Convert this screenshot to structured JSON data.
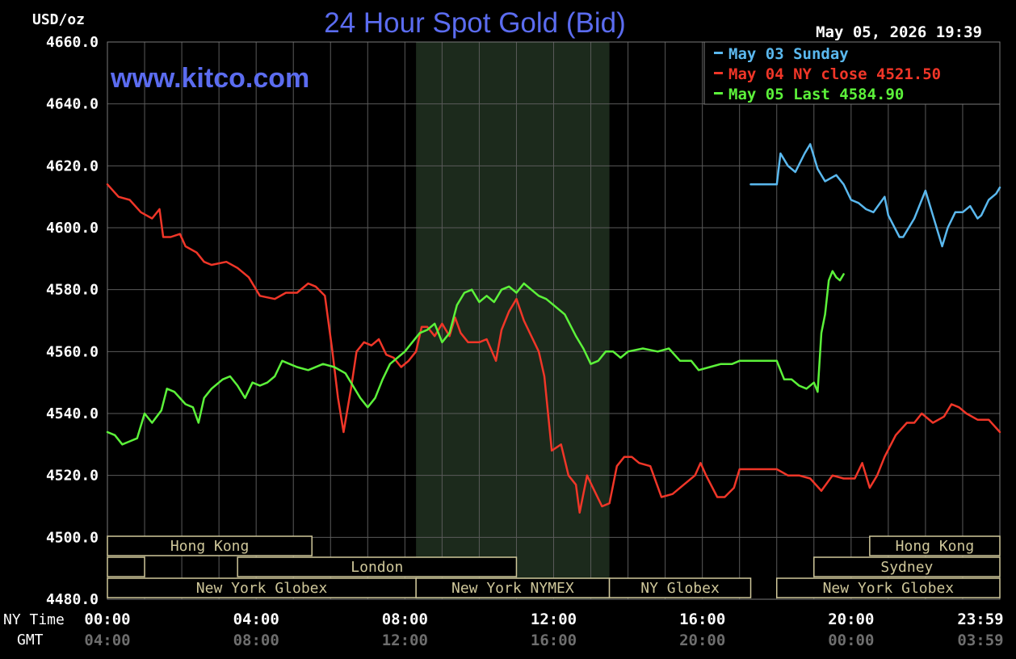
{
  "header": {
    "units": "USD/oz",
    "title": "24 Hour Spot Gold (Bid)",
    "timestamp": "May 05, 2026 19:39",
    "watermark": "www.kitco.com"
  },
  "colors": {
    "background": "#000000",
    "grid": "#5a5a5a",
    "title": "#5b6cf0",
    "sunday": "#5ab8ee",
    "ny_close": "#f03628",
    "last": "#5cf23a",
    "session_box": "#cfc79a",
    "shade": "#1c2a1c"
  },
  "legend": [
    {
      "label": "May 03 Sunday",
      "color": "#5ab8ee"
    },
    {
      "label": "May 04 NY close 4521.50",
      "color": "#f03628"
    },
    {
      "label": "May 05 Last 4584.90",
      "color": "#5cf23a"
    }
  ],
  "axis_row_labels": {
    "ny": "NY Time",
    "gmt": "GMT"
  },
  "sessions": [
    {
      "label": "Hong Kong",
      "row": 0,
      "start": 0,
      "end": 5.5
    },
    {
      "label": "Hong Kong",
      "row": 0,
      "start": 20.5,
      "end": 24
    },
    {
      "label": "",
      "row": 1,
      "start": 0,
      "end": 1
    },
    {
      "label": "London",
      "row": 1,
      "start": 3.5,
      "end": 11
    },
    {
      "label": "Sydney",
      "row": 1,
      "start": 19,
      "end": 24
    },
    {
      "label": "New York Globex",
      "row": 2,
      "start": 0,
      "end": 8.3
    },
    {
      "label": "New York NYMEX",
      "row": 2,
      "start": 8.3,
      "end": 13.5
    },
    {
      "label": "NY Globex",
      "row": 2,
      "start": 13.5,
      "end": 17.3
    },
    {
      "label": "New York Globex",
      "row": 2,
      "start": 18,
      "end": 24
    }
  ],
  "chart_data": {
    "type": "line",
    "title": "24 Hour Spot Gold (Bid)",
    "ylabel": "USD/oz",
    "ylim": [
      4480,
      4660
    ],
    "xlim": [
      0,
      24
    ],
    "yticks": [
      "4660.0",
      "4640.0",
      "4620.0",
      "4600.0",
      "4580.0",
      "4560.0",
      "4540.0",
      "4520.0",
      "4500.0",
      "4480.0"
    ],
    "xticks_ny": [
      "00:00",
      "04:00",
      "08:00",
      "12:00",
      "16:00",
      "20:00",
      "23:59"
    ],
    "xticks_gmt": [
      "04:00",
      "08:00",
      "12:00",
      "16:00",
      "20:00",
      "00:00",
      "03:59"
    ],
    "shaded_region": [
      8.3,
      13.5
    ],
    "grid": true,
    "legend_position": "top-right",
    "series": [
      {
        "name": "May 03 Sunday",
        "color": "#5ab8ee",
        "points": [
          [
            17.3,
            4614
          ],
          [
            18.0,
            4614
          ],
          [
            18.1,
            4624
          ],
          [
            18.3,
            4620
          ],
          [
            18.5,
            4618
          ],
          [
            18.75,
            4624
          ],
          [
            18.9,
            4627
          ],
          [
            19.1,
            4619
          ],
          [
            19.3,
            4615
          ],
          [
            19.6,
            4617
          ],
          [
            19.8,
            4614
          ],
          [
            20.0,
            4609
          ],
          [
            20.2,
            4608
          ],
          [
            20.4,
            4606
          ],
          [
            20.6,
            4605
          ],
          [
            20.9,
            4610
          ],
          [
            21.0,
            4604
          ],
          [
            21.3,
            4597
          ],
          [
            21.4,
            4597
          ],
          [
            21.7,
            4603
          ],
          [
            22.0,
            4612
          ],
          [
            22.2,
            4604
          ],
          [
            22.45,
            4594
          ],
          [
            22.6,
            4600
          ],
          [
            22.8,
            4605
          ],
          [
            23.0,
            4605
          ],
          [
            23.2,
            4607
          ],
          [
            23.4,
            4603
          ],
          [
            23.5,
            4604
          ],
          [
            23.7,
            4609
          ],
          [
            23.9,
            4611
          ],
          [
            24.0,
            4613
          ]
        ]
      },
      {
        "name": "May 04 NY close 4521.50",
        "color": "#f03628",
        "points": [
          [
            0.0,
            4614
          ],
          [
            0.3,
            4610
          ],
          [
            0.6,
            4609
          ],
          [
            0.9,
            4605
          ],
          [
            1.2,
            4603
          ],
          [
            1.4,
            4606
          ],
          [
            1.5,
            4597
          ],
          [
            1.7,
            4597
          ],
          [
            1.95,
            4598
          ],
          [
            2.1,
            4594
          ],
          [
            2.4,
            4592
          ],
          [
            2.6,
            4589
          ],
          [
            2.8,
            4588
          ],
          [
            3.2,
            4589
          ],
          [
            3.5,
            4587
          ],
          [
            3.8,
            4584
          ],
          [
            4.1,
            4578
          ],
          [
            4.5,
            4577
          ],
          [
            4.8,
            4579
          ],
          [
            5.1,
            4579
          ],
          [
            5.4,
            4582
          ],
          [
            5.6,
            4581
          ],
          [
            5.85,
            4578
          ],
          [
            6.05,
            4560
          ],
          [
            6.2,
            4545
          ],
          [
            6.35,
            4534
          ],
          [
            6.55,
            4548
          ],
          [
            6.7,
            4560
          ],
          [
            6.9,
            4563
          ],
          [
            7.1,
            4562
          ],
          [
            7.3,
            4564
          ],
          [
            7.5,
            4559
          ],
          [
            7.7,
            4558
          ],
          [
            7.9,
            4555
          ],
          [
            8.1,
            4557
          ],
          [
            8.3,
            4560
          ],
          [
            8.45,
            4568
          ],
          [
            8.6,
            4568
          ],
          [
            8.8,
            4565
          ],
          [
            9.0,
            4569
          ],
          [
            9.2,
            4565
          ],
          [
            9.35,
            4571
          ],
          [
            9.5,
            4566
          ],
          [
            9.7,
            4563
          ],
          [
            10.0,
            4563
          ],
          [
            10.2,
            4564
          ],
          [
            10.45,
            4557
          ],
          [
            10.6,
            4567
          ],
          [
            10.8,
            4573
          ],
          [
            11.0,
            4577
          ],
          [
            11.2,
            4570
          ],
          [
            11.4,
            4565
          ],
          [
            11.6,
            4560
          ],
          [
            11.75,
            4552
          ],
          [
            11.85,
            4540
          ],
          [
            11.95,
            4528
          ],
          [
            12.2,
            4530
          ],
          [
            12.4,
            4520
          ],
          [
            12.6,
            4517
          ],
          [
            12.7,
            4508
          ],
          [
            12.9,
            4520
          ],
          [
            13.1,
            4515
          ],
          [
            13.3,
            4510
          ],
          [
            13.5,
            4511
          ],
          [
            13.7,
            4523
          ],
          [
            13.9,
            4526
          ],
          [
            14.1,
            4526
          ],
          [
            14.3,
            4524
          ],
          [
            14.6,
            4523
          ],
          [
            14.9,
            4513
          ],
          [
            15.2,
            4514
          ],
          [
            15.5,
            4517
          ],
          [
            15.8,
            4520
          ],
          [
            15.95,
            4524
          ],
          [
            16.1,
            4520
          ],
          [
            16.4,
            4513
          ],
          [
            16.6,
            4513
          ],
          [
            16.85,
            4516
          ],
          [
            17.0,
            4522
          ],
          [
            17.5,
            4522
          ],
          [
            18.0,
            4522
          ],
          [
            18.3,
            4520
          ],
          [
            18.6,
            4520
          ],
          [
            18.9,
            4519
          ],
          [
            19.2,
            4515
          ],
          [
            19.5,
            4520
          ],
          [
            19.8,
            4519
          ],
          [
            20.1,
            4519
          ],
          [
            20.3,
            4524
          ],
          [
            20.5,
            4516
          ],
          [
            20.7,
            4520
          ],
          [
            20.9,
            4526
          ],
          [
            21.2,
            4533
          ],
          [
            21.5,
            4537
          ],
          [
            21.7,
            4537
          ],
          [
            21.9,
            4540
          ],
          [
            22.2,
            4537
          ],
          [
            22.5,
            4539
          ],
          [
            22.7,
            4543
          ],
          [
            22.9,
            4542
          ],
          [
            23.1,
            4540
          ],
          [
            23.4,
            4538
          ],
          [
            23.7,
            4538
          ],
          [
            24.0,
            4534
          ]
        ]
      },
      {
        "name": "May 05 Last 4584.90",
        "color": "#5cf23a",
        "points": [
          [
            0.0,
            4534
          ],
          [
            0.2,
            4533
          ],
          [
            0.4,
            4530
          ],
          [
            0.6,
            4531
          ],
          [
            0.8,
            4532
          ],
          [
            1.0,
            4540
          ],
          [
            1.2,
            4537
          ],
          [
            1.45,
            4541
          ],
          [
            1.6,
            4548
          ],
          [
            1.8,
            4547
          ],
          [
            2.1,
            4543
          ],
          [
            2.3,
            4542
          ],
          [
            2.45,
            4537
          ],
          [
            2.6,
            4545
          ],
          [
            2.8,
            4548
          ],
          [
            3.1,
            4551
          ],
          [
            3.3,
            4552
          ],
          [
            3.5,
            4549
          ],
          [
            3.7,
            4545
          ],
          [
            3.9,
            4550
          ],
          [
            4.1,
            4549
          ],
          [
            4.3,
            4550
          ],
          [
            4.5,
            4552
          ],
          [
            4.7,
            4557
          ],
          [
            4.9,
            4556
          ],
          [
            5.1,
            4555
          ],
          [
            5.4,
            4554
          ],
          [
            5.8,
            4556
          ],
          [
            6.1,
            4555
          ],
          [
            6.4,
            4553
          ],
          [
            6.6,
            4549
          ],
          [
            6.8,
            4545
          ],
          [
            7.0,
            4542
          ],
          [
            7.2,
            4545
          ],
          [
            7.4,
            4551
          ],
          [
            7.6,
            4556
          ],
          [
            7.8,
            4558
          ],
          [
            8.0,
            4560
          ],
          [
            8.2,
            4563
          ],
          [
            8.4,
            4566
          ],
          [
            8.6,
            4567
          ],
          [
            8.8,
            4569
          ],
          [
            9.0,
            4563
          ],
          [
            9.2,
            4566
          ],
          [
            9.4,
            4575
          ],
          [
            9.6,
            4579
          ],
          [
            9.8,
            4580
          ],
          [
            10.0,
            4576
          ],
          [
            10.2,
            4578
          ],
          [
            10.4,
            4576
          ],
          [
            10.6,
            4580
          ],
          [
            10.8,
            4581
          ],
          [
            11.0,
            4579
          ],
          [
            11.2,
            4582
          ],
          [
            11.4,
            4580
          ],
          [
            11.6,
            4578
          ],
          [
            11.8,
            4577
          ],
          [
            12.0,
            4575
          ],
          [
            12.3,
            4572
          ],
          [
            12.6,
            4565
          ],
          [
            12.8,
            4561
          ],
          [
            13.0,
            4556
          ],
          [
            13.2,
            4557
          ],
          [
            13.4,
            4560
          ],
          [
            13.6,
            4560
          ],
          [
            13.8,
            4558
          ],
          [
            14.0,
            4560
          ],
          [
            14.4,
            4561
          ],
          [
            14.8,
            4560
          ],
          [
            15.1,
            4561
          ],
          [
            15.4,
            4557
          ],
          [
            15.7,
            4557
          ],
          [
            15.9,
            4554
          ],
          [
            16.2,
            4555
          ],
          [
            16.5,
            4556
          ],
          [
            16.8,
            4556
          ],
          [
            17.0,
            4557
          ],
          [
            17.5,
            4557
          ],
          [
            18.0,
            4557
          ],
          [
            18.2,
            4551
          ],
          [
            18.4,
            4551
          ],
          [
            18.6,
            4549
          ],
          [
            18.8,
            4548
          ],
          [
            19.0,
            4550
          ],
          [
            19.1,
            4547
          ],
          [
            19.2,
            4566
          ],
          [
            19.3,
            4572
          ],
          [
            19.4,
            4583
          ],
          [
            19.5,
            4586
          ],
          [
            19.6,
            4584
          ],
          [
            19.7,
            4583
          ],
          [
            19.8,
            4585
          ]
        ]
      }
    ]
  }
}
